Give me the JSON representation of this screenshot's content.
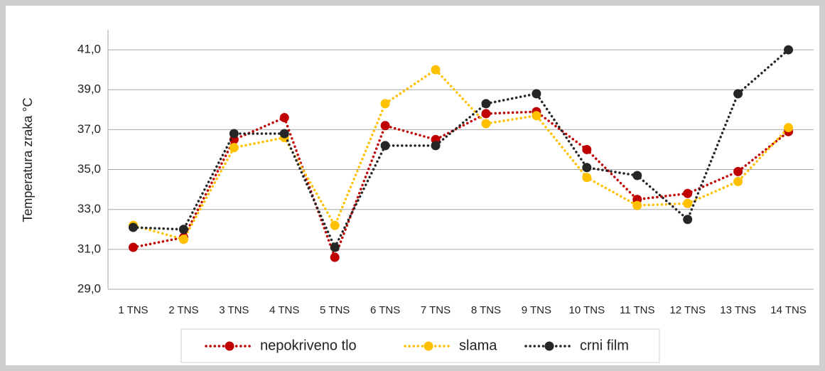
{
  "chart_data": {
    "type": "line",
    "y_label": "Temperatura zraka °C",
    "categories": [
      "1 TNS",
      "2 TNS",
      "3 TNS",
      "4 TNS",
      "5 TNS",
      "6 TNS",
      "7 TNS",
      "8 TNS",
      "9 TNS",
      "10 TNS",
      "11 TNS",
      "12 TNS",
      "13 TNS",
      "14 TNS"
    ],
    "series": [
      {
        "name": "nepokriveno tlo",
        "color": "#c00000",
        "values": [
          31.1,
          31.6,
          36.5,
          37.6,
          30.6,
          37.2,
          36.5,
          37.8,
          37.9,
          36.0,
          33.5,
          33.8,
          34.9,
          36.9
        ]
      },
      {
        "name": "slama",
        "color": "#ffc000",
        "values": [
          32.2,
          31.5,
          36.1,
          36.6,
          32.2,
          38.3,
          40.0,
          37.3,
          37.7,
          34.6,
          33.2,
          33.3,
          34.4,
          37.1
        ]
      },
      {
        "name": "crni film",
        "color": "#262626",
        "values": [
          32.1,
          32.0,
          36.8,
          36.8,
          31.1,
          36.2,
          36.2,
          38.3,
          38.8,
          35.1,
          34.7,
          32.5,
          38.8,
          41.0
        ]
      }
    ],
    "ylim": [
      29,
      42
    ],
    "yticks": [
      {
        "value": 29,
        "label": "29,0"
      },
      {
        "value": 31,
        "label": "31,0"
      },
      {
        "value": 33,
        "label": "33,0"
      },
      {
        "value": 35,
        "label": "35,0"
      },
      {
        "value": 37,
        "label": "37,0"
      },
      {
        "value": 39,
        "label": "39,0"
      },
      {
        "value": 41,
        "label": "41,0"
      }
    ],
    "grid": true
  }
}
